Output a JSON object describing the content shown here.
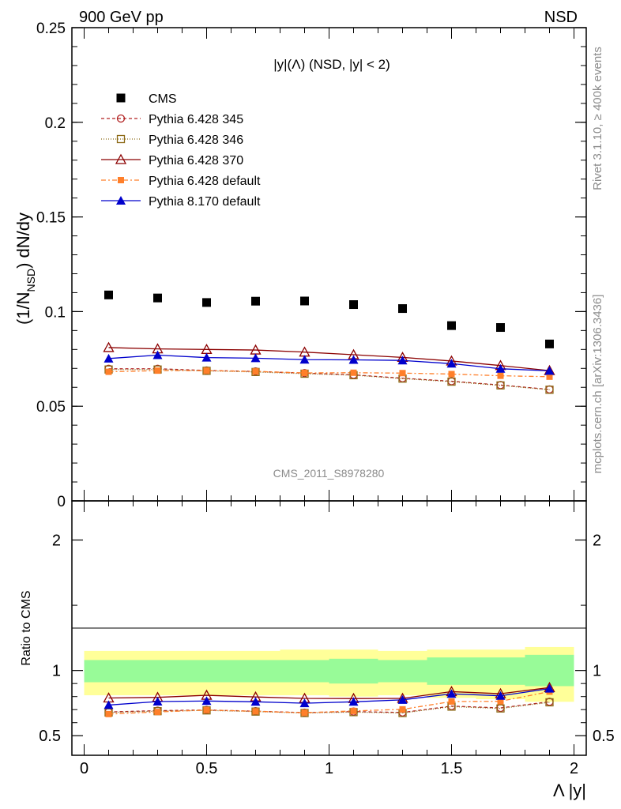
{
  "header": {
    "left": "900 GeV pp",
    "right": "NSD"
  },
  "side_text": {
    "rivet": "Rivet 3.1.10, ≥ 400k events",
    "mcplots": "mcplots.cern.ch [arXiv:1306.3436]"
  },
  "watermark": "CMS_2011_S8978280",
  "chart_data": [
    {
      "type": "scatter",
      "title": "|y|(Λ) (NSD, |y| < 2)",
      "ylabel": "(1/N_NSD) dN/dy",
      "xlabel": "Λ |y|",
      "xlim": [
        -0.05,
        2.05
      ],
      "ylim": [
        0,
        0.25
      ],
      "yticks": [
        "0",
        "0.05",
        "0.1",
        "0.15",
        "0.2",
        "0.25"
      ],
      "legend_position": "top-left",
      "x": [
        0.1,
        0.3,
        0.5,
        0.7,
        0.9,
        1.1,
        1.3,
        1.5,
        1.7,
        1.9
      ],
      "series": [
        {
          "name": "CMS",
          "color": "#000000",
          "marker": "square-filled",
          "values": [
            0.1088,
            0.1072,
            0.1048,
            0.1055,
            0.1056,
            0.1037,
            0.1016,
            0.0926,
            0.0916,
            0.0829
          ]
        },
        {
          "name": "Pythia 6.428 345",
          "color": "#b22222",
          "marker": "circle-open",
          "dash": "4,3",
          "values": [
            0.0698,
            0.0698,
            0.0689,
            0.0684,
            0.0675,
            0.0666,
            0.0648,
            0.0632,
            0.0612,
            0.0589
          ]
        },
        {
          "name": "Pythia 6.428 346",
          "color": "#8b6914",
          "marker": "square-open",
          "dash": "1,2",
          "values": [
            0.0694,
            0.0694,
            0.0687,
            0.0681,
            0.0672,
            0.0664,
            0.0646,
            0.063,
            0.061,
            0.0587
          ]
        },
        {
          "name": "Pythia 6.428 370",
          "color": "#8b0000",
          "marker": "triangle-open",
          "dash": "",
          "values": [
            0.081,
            0.0803,
            0.08,
            0.0797,
            0.0786,
            0.0772,
            0.0758,
            0.0739,
            0.0715,
            0.0688
          ]
        },
        {
          "name": "Pythia 6.428 default",
          "color": "#ff7f2a",
          "marker": "square-filled-small",
          "dash": "6,3,2,3",
          "values": [
            0.0682,
            0.0688,
            0.0688,
            0.0684,
            0.0676,
            0.0677,
            0.0675,
            0.067,
            0.0661,
            0.0656
          ]
        },
        {
          "name": "Pythia 8.170 default",
          "color": "#0000cc",
          "marker": "triangle-filled",
          "dash": "",
          "values": [
            0.0752,
            0.077,
            0.0757,
            0.0754,
            0.0746,
            0.0745,
            0.0742,
            0.0725,
            0.0698,
            0.0687
          ]
        }
      ]
    },
    {
      "type": "line",
      "ylabel": "Ratio to CMS",
      "xlabel": "Λ |y|",
      "xlim": [
        -0.05,
        2.05
      ],
      "ylim": [
        0.35,
        2.3
      ],
      "yticks": [
        "0.5",
        "1",
        "2"
      ],
      "xticks": [
        "0",
        "0.5",
        "1",
        "1.5",
        "2"
      ],
      "bin_edges": [
        0.0,
        0.2,
        0.4,
        0.6,
        0.8,
        1.0,
        1.2,
        1.4,
        1.6,
        1.8,
        2.0
      ],
      "band_inner": {
        "color": "#98fb98",
        "lo": [
          0.91,
          0.91,
          0.91,
          0.91,
          0.91,
          0.9,
          0.91,
          0.89,
          0.89,
          0.88
        ],
        "hi": [
          1.08,
          1.08,
          1.08,
          1.08,
          1.08,
          1.09,
          1.08,
          1.1,
          1.1,
          1.12
        ]
      },
      "band_outer": {
        "color": "#ffff99",
        "lo": [
          0.81,
          0.81,
          0.81,
          0.81,
          0.81,
          0.8,
          0.81,
          0.79,
          0.78,
          0.76
        ],
        "hi": [
          1.15,
          1.15,
          1.15,
          1.15,
          1.16,
          1.16,
          1.15,
          1.16,
          1.16,
          1.18
        ]
      },
      "x": [
        0.1,
        0.3,
        0.5,
        0.7,
        0.9,
        1.1,
        1.3,
        1.5,
        1.7,
        1.9
      ],
      "series": [
        {
          "name": "Pythia 6.428 345",
          "color": "#b22222",
          "marker": "circle-open",
          "dash": "4,3",
          "values": [
            0.682,
            0.692,
            0.697,
            0.688,
            0.677,
            0.685,
            0.678,
            0.727,
            0.713,
            0.76
          ]
        },
        {
          "name": "Pythia 6.428 346",
          "color": "#8b6914",
          "marker": "square-open",
          "dash": "1,2",
          "values": [
            0.678,
            0.688,
            0.694,
            0.685,
            0.674,
            0.681,
            0.674,
            0.723,
            0.709,
            0.756
          ]
        },
        {
          "name": "Pythia 6.428 370",
          "color": "#8b0000",
          "marker": "triangle-open",
          "dash": "",
          "values": [
            0.789,
            0.794,
            0.81,
            0.797,
            0.786,
            0.785,
            0.786,
            0.838,
            0.822,
            0.869
          ]
        },
        {
          "name": "Pythia 6.428 default",
          "color": "#ff7f2a",
          "marker": "square-filled-small",
          "dash": "6,3,2,3",
          "values": [
            0.666,
            0.682,
            0.697,
            0.687,
            0.676,
            0.69,
            0.702,
            0.762,
            0.764,
            0.838
          ]
        },
        {
          "name": "Pythia 8.170 default",
          "color": "#0000cc",
          "marker": "triangle-filled",
          "dash": "",
          "values": [
            0.735,
            0.762,
            0.766,
            0.76,
            0.749,
            0.76,
            0.775,
            0.821,
            0.806,
            0.861
          ]
        }
      ]
    }
  ]
}
